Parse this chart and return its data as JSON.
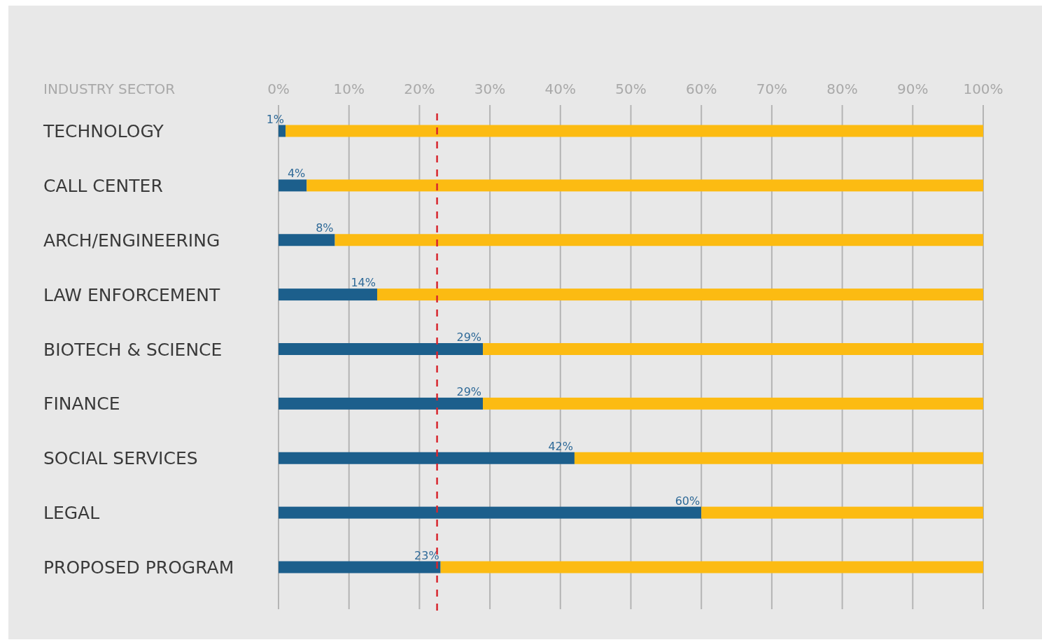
{
  "chart_data": {
    "type": "bar",
    "orientation": "horizontal",
    "stacked": true,
    "ylabel": "INDUSTRY SECTOR",
    "categories": [
      "TECHNOLOGY",
      "CALL CENTER",
      "ARCH/ENGINEERING",
      "LAW ENFORCEMENT",
      "BIOTECH & SCIENCE",
      "FINANCE",
      "SOCIAL SERVICES",
      "LEGAL",
      "PROPOSED PROGRAM"
    ],
    "series": [
      {
        "color": "#1c5f8c",
        "values": [
          1,
          4,
          8,
          14,
          29,
          29,
          42,
          60,
          23
        ],
        "value_labels": [
          "1%",
          "4%",
          "8%",
          "14%",
          "29%",
          "29%",
          "42%",
          "60%",
          "23%"
        ]
      },
      {
        "color": "#fcbb12",
        "values": [
          99,
          96,
          92,
          86,
          71,
          71,
          58,
          40,
          77
        ]
      }
    ],
    "xlim": [
      0,
      100
    ],
    "xticks": [
      {
        "value": 0,
        "label": "0%"
      },
      {
        "value": 10,
        "label": "10%"
      },
      {
        "value": 20,
        "label": "20%"
      },
      {
        "value": 30,
        "label": "30%"
      },
      {
        "value": 40,
        "label": "40%"
      },
      {
        "value": 50,
        "label": "50%"
      },
      {
        "value": 60,
        "label": "60%"
      },
      {
        "value": 70,
        "label": "70%"
      },
      {
        "value": 80,
        "label": "80%"
      },
      {
        "value": 90,
        "label": "90%"
      },
      {
        "value": 100,
        "label": "100%"
      }
    ],
    "grid": "x",
    "ref_lines": [
      {
        "axis": "x",
        "value": 22.5,
        "color": "#d7262e",
        "line_style": "dashed"
      }
    ]
  }
}
